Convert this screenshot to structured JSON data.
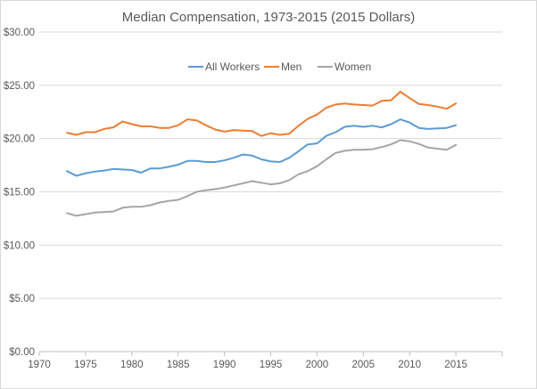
{
  "chart_data": {
    "type": "line",
    "title": "Median Compensation, 1973-2015 (2015 Dollars)",
    "xlabel": "",
    "ylabel": "",
    "xlim": [
      1970,
      2020
    ],
    "ylim": [
      0,
      30
    ],
    "x_ticks": [
      "1970",
      "1975",
      "1980",
      "1985",
      "1990",
      "1995",
      "2000",
      "2005",
      "2010",
      "2015"
    ],
    "y_ticks": [
      "$0.00",
      "$5.00",
      "$10.00",
      "$15.00",
      "$20.00",
      "$25.00",
      "$30.00"
    ],
    "grid": "horizontal",
    "legend_position": "top-center",
    "x": [
      1973,
      1974,
      1975,
      1976,
      1977,
      1978,
      1979,
      1980,
      1981,
      1982,
      1983,
      1984,
      1985,
      1986,
      1987,
      1988,
      1989,
      1990,
      1991,
      1992,
      1993,
      1994,
      1995,
      1996,
      1997,
      1998,
      1999,
      2000,
      2001,
      2002,
      2003,
      2004,
      2005,
      2006,
      2007,
      2008,
      2009,
      2010,
      2011,
      2012,
      2013,
      2014,
      2015
    ],
    "series": [
      {
        "name": "All Workers",
        "color": "#5b9bd5",
        "values": [
          16.95,
          16.5,
          16.75,
          16.9,
          17.0,
          17.15,
          17.1,
          17.05,
          16.8,
          17.2,
          17.2,
          17.35,
          17.55,
          17.9,
          17.9,
          17.8,
          17.8,
          17.95,
          18.2,
          18.5,
          18.4,
          18.05,
          17.85,
          17.8,
          18.2,
          18.8,
          19.45,
          19.55,
          20.25,
          20.6,
          21.1,
          21.2,
          21.1,
          21.2,
          21.05,
          21.35,
          21.8,
          21.5,
          21.0,
          20.9,
          20.95,
          21.0,
          21.25
        ]
      },
      {
        "name": "Men",
        "color": "#ed7d31",
        "values": [
          20.55,
          20.35,
          20.6,
          20.6,
          20.9,
          21.05,
          21.6,
          21.35,
          21.15,
          21.15,
          21.0,
          21.0,
          21.25,
          21.8,
          21.7,
          21.25,
          20.85,
          20.65,
          20.8,
          20.75,
          20.7,
          20.25,
          20.5,
          20.35,
          20.45,
          21.2,
          21.85,
          22.25,
          22.9,
          23.2,
          23.3,
          23.2,
          23.15,
          23.1,
          23.55,
          23.6,
          24.4,
          23.8,
          23.25,
          23.15,
          23.0,
          22.8,
          23.3
        ]
      },
      {
        "name": "Women",
        "color": "#a5a5a5",
        "values": [
          13.0,
          12.75,
          12.9,
          13.05,
          13.1,
          13.15,
          13.5,
          13.6,
          13.6,
          13.75,
          14.0,
          14.15,
          14.25,
          14.6,
          15.0,
          15.15,
          15.25,
          15.4,
          15.6,
          15.8,
          16.0,
          15.85,
          15.7,
          15.8,
          16.1,
          16.65,
          16.95,
          17.4,
          18.05,
          18.65,
          18.85,
          18.95,
          18.95,
          19.0,
          19.2,
          19.45,
          19.85,
          19.75,
          19.5,
          19.15,
          19.05,
          18.95,
          19.4
        ]
      }
    ]
  }
}
